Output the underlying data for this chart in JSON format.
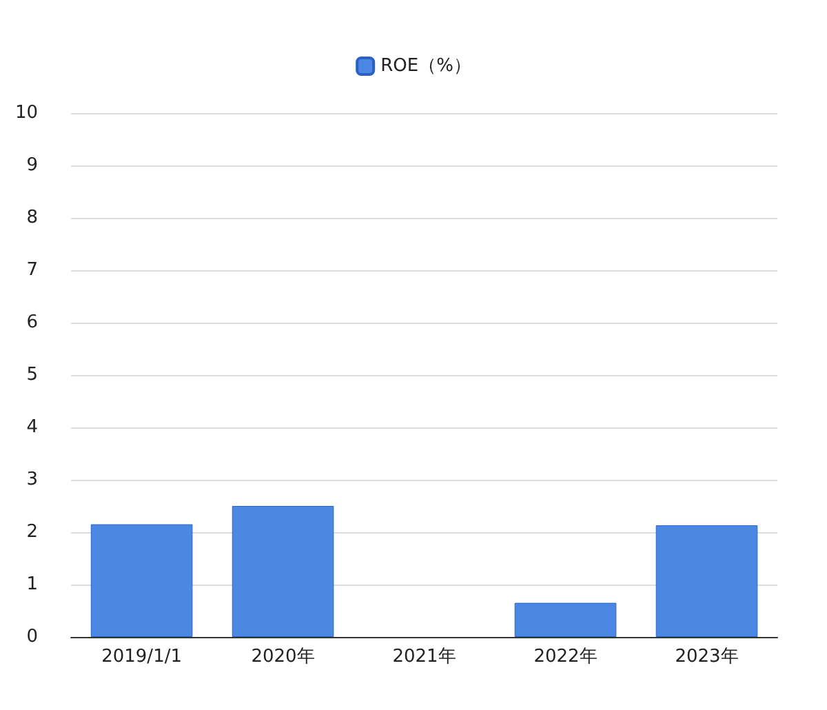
{
  "chart_data": {
    "type": "bar",
    "categories": [
      "2019/1/1",
      "2020年",
      "2021年",
      "2022年",
      "2023年"
    ],
    "series": [
      {
        "name": "ROE（%）",
        "color": "#4a88e4",
        "values": [
          2.15,
          2.5,
          null,
          0.65,
          2.13
        ]
      }
    ],
    "ylim": [
      0,
      10
    ],
    "yticks": [
      0,
      1,
      2,
      3,
      4,
      5,
      6,
      7,
      8,
      9,
      10
    ],
    "grid": "y",
    "legend": "top"
  }
}
